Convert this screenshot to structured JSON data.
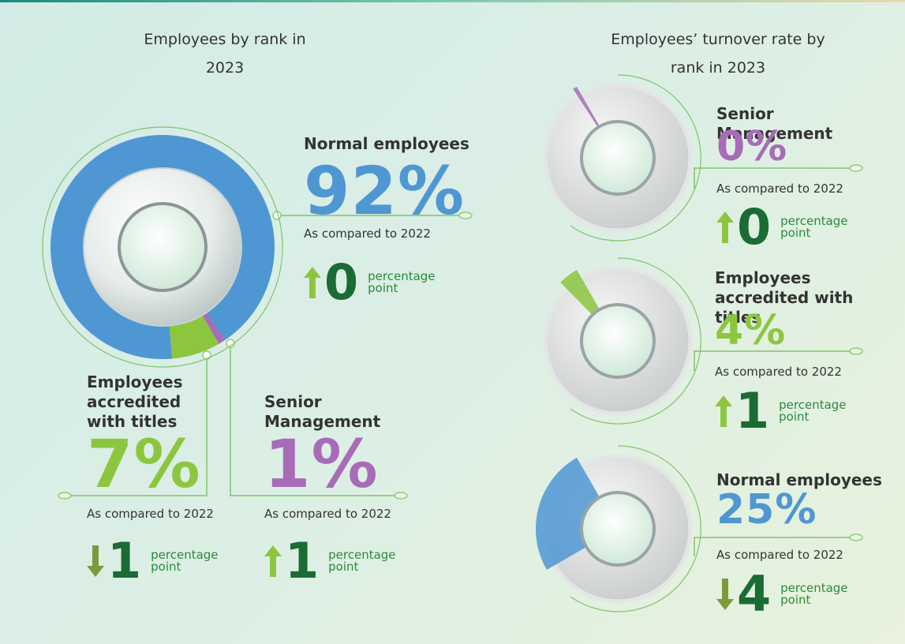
{
  "chart_data": [
    {
      "type": "donut",
      "title": "Employees by rank in 2023",
      "categories": [
        "Normal employees",
        "Employees accredited with titles",
        "Senior Management"
      ],
      "values": [
        92,
        7,
        1
      ],
      "value_labels": [
        "92%",
        "7%",
        "1%"
      ],
      "colors": [
        "#4f97d3",
        "#8cc63f",
        "#a86bb8"
      ],
      "comparison_label": "As compared to 2022",
      "changes": [
        0,
        1,
        1
      ],
      "change_directions": [
        "up",
        "down",
        "up"
      ],
      "change_unit": "percentage point"
    },
    {
      "type": "gauge",
      "title": "Employees’ turnover rate by rank in 2023",
      "categories": [
        "Senior Management",
        "Employees accredited with titles",
        "Normal employees"
      ],
      "values": [
        0,
        4,
        25
      ],
      "value_labels": [
        "0%",
        "4%",
        "25%"
      ],
      "colors": [
        "#a86bb8",
        "#8cc63f",
        "#4f97d3"
      ],
      "comparison_label": "As compared to 2022",
      "changes": [
        0,
        1,
        4
      ],
      "change_directions": [
        "up",
        "up",
        "down"
      ],
      "change_unit": "percentage point"
    }
  ]
}
